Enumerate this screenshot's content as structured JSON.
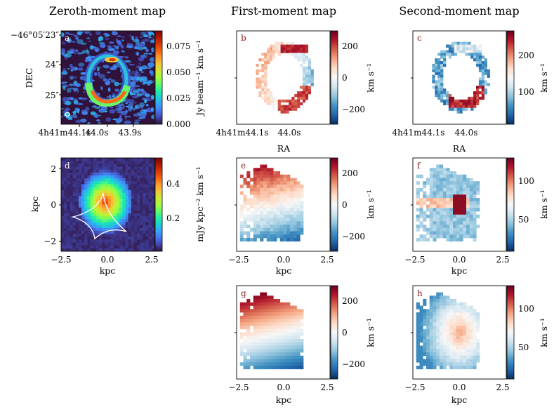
{
  "columns": [
    "Zeroth-moment map",
    "First-moment map",
    "Second-moment map"
  ],
  "colors": {
    "jet_map": [
      "#30123b",
      "#4145ab",
      "#4675ed",
      "#39a2fc",
      "#1bcfd4",
      "#24eca6",
      "#61fc6c",
      "#a4fc3b",
      "#d1e834",
      "#f3c63a",
      "#fe9b2d",
      "#f36315",
      "#d93806",
      "#b11901",
      "#7a0403"
    ],
    "rdbu_map": [
      "#053061",
      "#2166ac",
      "#4393c3",
      "#92c5de",
      "#d1e5f0",
      "#f7f7f7",
      "#fddbc7",
      "#f4a582",
      "#d6604d",
      "#b2182b",
      "#67001f"
    ],
    "bg_dark": "#30123b",
    "letter_light": "#ffffff",
    "letter_dark": "#8b1a1a"
  },
  "chart_data": [
    {
      "panel": "a",
      "type": "heatmap",
      "content": "zeroth-moment map (sky coordinates)",
      "ylabel": "DEC",
      "xlabel": "",
      "y_ticks": [
        "−46°05′23″",
        "24″",
        "25″"
      ],
      "x_ticks": [
        "4h41m44.1s",
        "44.0s",
        "43.9s"
      ],
      "colorbar": {
        "label": "Jy beam⁻¹ km s⁻¹",
        "ticks": [
          "0.000",
          "0.025",
          "0.050",
          "0.075"
        ],
        "range": [
          0.0,
          0.09
        ],
        "cmap": "jet"
      }
    },
    {
      "panel": "b",
      "type": "heatmap",
      "content": "first-moment map (sky coordinates)",
      "xlabel": "RA",
      "x_ticks": [
        "4h41m44.1s",
        "44.0s"
      ],
      "colorbar": {
        "label": "km s⁻¹",
        "ticks": [
          "200",
          "0",
          "−200"
        ],
        "range": [
          -280,
          280
        ],
        "cmap": "RdBu_r"
      }
    },
    {
      "panel": "c",
      "type": "heatmap",
      "content": "second-moment map (sky coordinates)",
      "xlabel": "RA",
      "x_ticks": [
        "4h41m44.1s",
        "44.0s"
      ],
      "colorbar": {
        "label": "km s⁻¹",
        "ticks": [
          "200",
          "100"
        ],
        "range": [
          0,
          280
        ],
        "cmap": "RdBu_r"
      }
    },
    {
      "panel": "d",
      "type": "heatmap",
      "content": "zeroth-moment source-plane reconstruction with caustic",
      "xlabel": "kpc",
      "ylabel": "kpc",
      "x_ticks": [
        "−2.5",
        "0.0",
        "2.5"
      ],
      "y_ticks": [
        "2",
        "0",
        "−2"
      ],
      "xlim": [
        -2.5,
        2.5
      ],
      "ylim": [
        -2.5,
        2.5
      ],
      "colorbar": {
        "label": "mJy kpc⁻² km s⁻¹",
        "ticks": [
          "0.4",
          "0.2"
        ],
        "range": [
          0.0,
          0.55
        ],
        "cmap": "jet"
      }
    },
    {
      "panel": "e",
      "type": "heatmap",
      "content": "first-moment source-plane reconstruction",
      "xlabel": "kpc",
      "x_ticks": [
        "−2.5",
        "0.0",
        "2.5"
      ],
      "xlim": [
        -2.5,
        2.5
      ],
      "ylim": [
        -2.5,
        2.5
      ],
      "colorbar": {
        "label": "km s⁻¹",
        "ticks": [
          "200",
          "0",
          "−200"
        ],
        "range": [
          -280,
          280
        ],
        "cmap": "RdBu_r"
      }
    },
    {
      "panel": "f",
      "type": "heatmap",
      "content": "second-moment source-plane reconstruction",
      "xlabel": "kpc",
      "x_ticks": [
        "−2.5",
        "0.0",
        "2.5"
      ],
      "xlim": [
        -2.5,
        2.5
      ],
      "ylim": [
        -2.5,
        2.5
      ],
      "colorbar": {
        "label": "km s⁻¹",
        "ticks": [
          "100",
          "50"
        ],
        "range": [
          0,
          130
        ],
        "cmap": "RdBu_r"
      }
    },
    {
      "panel": "g",
      "type": "heatmap",
      "content": "first-moment model",
      "xlabel": "kpc",
      "x_ticks": [
        "−2.5",
        "0.0",
        "2.5"
      ],
      "xlim": [
        -2.5,
        2.5
      ],
      "ylim": [
        -2.5,
        2.5
      ],
      "colorbar": {
        "label": "km s⁻¹",
        "ticks": [
          "200",
          "0",
          "−200"
        ],
        "range": [
          -280,
          280
        ],
        "cmap": "RdBu_r"
      }
    },
    {
      "panel": "h",
      "type": "heatmap",
      "content": "second-moment model",
      "xlabel": "kpc",
      "x_ticks": [
        "−2.5",
        "0.0",
        "2.5"
      ],
      "xlim": [
        -2.5,
        2.5
      ],
      "ylim": [
        -2.5,
        2.5
      ],
      "colorbar": {
        "label": "km s⁻¹",
        "ticks": [
          "100",
          "50"
        ],
        "range": [
          0,
          130
        ],
        "cmap": "RdBu_r"
      }
    }
  ]
}
